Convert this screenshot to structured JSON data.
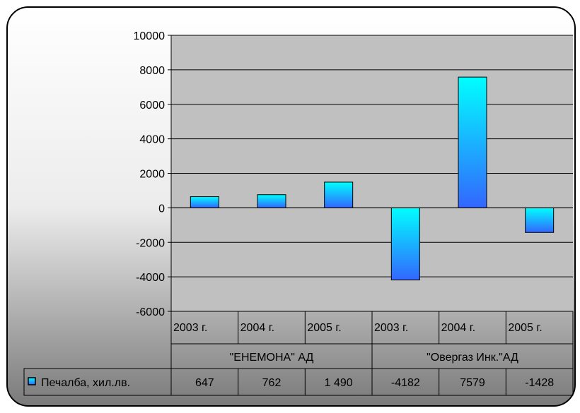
{
  "chart_data": {
    "type": "bar",
    "groups": [
      {
        "name": "\"ЕНЕМОНА\" АД",
        "years": [
          "2003 г.",
          "2004 г.",
          "2005 г."
        ]
      },
      {
        "name": "\"Овергаз Инк.\"АД",
        "years": [
          "2003 г.",
          "2004 г.",
          "2005 г."
        ]
      }
    ],
    "series": [
      {
        "name": "Печалба, хил.лв.",
        "values": [
          647,
          762,
          1490,
          -4182,
          7579,
          -1428
        ],
        "labels": [
          "647",
          "762",
          "1 490",
          "-4182",
          "7579",
          "-1428"
        ]
      }
    ],
    "ylim": [
      -6000,
      10000
    ],
    "yticks": [
      10000,
      8000,
      6000,
      4000,
      2000,
      0,
      -2000,
      -4000,
      -6000
    ],
    "grid": true,
    "legend": "data-table",
    "colors": {
      "bar_top": "#00ffff",
      "bar_bottom": "#3366ff",
      "plot_bg": "#c0c0c0",
      "frame_top": "#ffffff",
      "frame_bottom": "#777777"
    }
  }
}
